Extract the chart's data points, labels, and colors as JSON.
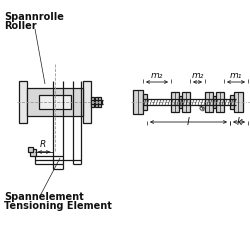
{
  "bg_color": "#ffffff",
  "line_color": "#1a1a1a",
  "dash_color": "#999999",
  "text_color": "#111111",
  "label_spannrolle": "Spannrolle",
  "label_roller": "Roller",
  "label_spannelement": "Spannelement",
  "label_tensioning": "Tensioning Element",
  "label_l": "l",
  "label_k": "k",
  "label_d": "d",
  "label_m1": "m₁",
  "label_m2": "m₂",
  "label_m2b": "m₂",
  "label_R": "R"
}
